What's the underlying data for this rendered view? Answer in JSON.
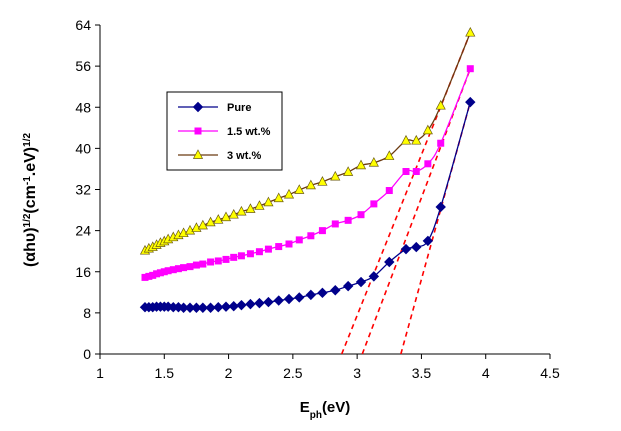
{
  "chart_data": {
    "type": "scatter",
    "title": "",
    "xlabel_main": "E",
    "xlabel_sub": "ph",
    "xlabel_unit": "(eV)",
    "ylabel": {
      "p1": "(αhυ)",
      "sup1": "1/2",
      "p2": "(cm",
      "sup2": "-1",
      "p3": ".eV)",
      "sup3": "1/2"
    },
    "xlim": [
      1,
      4.5
    ],
    "ylim": [
      0,
      64
    ],
    "xticks": [
      "1",
      "1.5",
      "2",
      "2.5",
      "3",
      "3.5",
      "4",
      "4.5"
    ],
    "yticks": [
      "0",
      "8",
      "16",
      "24",
      "32",
      "40",
      "48",
      "56",
      "64"
    ],
    "grid": false,
    "legend_position": "upper-left",
    "series": [
      {
        "name": "Pure",
        "color": "#00008b",
        "marker": "diamond",
        "x": [
          1.35,
          1.38,
          1.41,
          1.44,
          1.47,
          1.5,
          1.53,
          1.57,
          1.61,
          1.65,
          1.7,
          1.75,
          1.8,
          1.86,
          1.92,
          1.98,
          2.04,
          2.1,
          2.17,
          2.24,
          2.31,
          2.39,
          2.47,
          2.55,
          2.64,
          2.73,
          2.83,
          2.93,
          3.03,
          3.13,
          3.25,
          3.38,
          3.46,
          3.55,
          3.65,
          3.88
        ],
        "y": [
          9.1,
          9.1,
          9.1,
          9.2,
          9.2,
          9.2,
          9.2,
          9.1,
          9.1,
          9.0,
          9.0,
          9.0,
          9.0,
          9.0,
          9.1,
          9.2,
          9.3,
          9.5,
          9.7,
          9.9,
          10.1,
          10.4,
          10.7,
          11.0,
          11.5,
          11.9,
          12.4,
          13.2,
          14.0,
          15.1,
          17.9,
          20.4,
          20.8,
          22.0,
          28.6,
          49.0
        ]
      },
      {
        "name": "1.5 wt.%",
        "color": "#ff00ff",
        "marker": "square",
        "x": [
          1.35,
          1.38,
          1.41,
          1.44,
          1.47,
          1.5,
          1.53,
          1.57,
          1.61,
          1.65,
          1.7,
          1.75,
          1.8,
          1.86,
          1.92,
          1.98,
          2.04,
          2.1,
          2.17,
          2.24,
          2.31,
          2.39,
          2.47,
          2.55,
          2.64,
          2.73,
          2.83,
          2.93,
          3.03,
          3.13,
          3.25,
          3.38,
          3.46,
          3.55,
          3.65,
          3.88
        ],
        "y": [
          14.9,
          15.1,
          15.3,
          15.6,
          15.8,
          16.0,
          16.2,
          16.4,
          16.6,
          16.8,
          17.0,
          17.3,
          17.5,
          17.9,
          18.1,
          18.4,
          18.8,
          19.1,
          19.5,
          19.9,
          20.4,
          20.9,
          21.4,
          22.2,
          23.0,
          24.0,
          25.3,
          26.0,
          27.1,
          29.2,
          31.8,
          35.5,
          35.5,
          37.0,
          41.0,
          55.5
        ]
      },
      {
        "name": "3 wt.%",
        "color": "#ffff00",
        "marker": "triangle",
        "x": [
          1.35,
          1.38,
          1.41,
          1.44,
          1.47,
          1.5,
          1.53,
          1.57,
          1.61,
          1.65,
          1.7,
          1.75,
          1.8,
          1.86,
          1.92,
          1.98,
          2.04,
          2.1,
          2.17,
          2.24,
          2.31,
          2.39,
          2.47,
          2.55,
          2.64,
          2.73,
          2.83,
          2.93,
          3.03,
          3.13,
          3.25,
          3.38,
          3.46,
          3.55,
          3.65,
          3.88
        ],
        "y": [
          20.1,
          20.5,
          20.8,
          21.2,
          21.6,
          21.9,
          22.3,
          22.7,
          23.1,
          23.5,
          24.0,
          24.5,
          25.0,
          25.6,
          26.1,
          26.6,
          27.1,
          27.7,
          28.2,
          28.8,
          29.5,
          30.3,
          31.0,
          31.9,
          32.8,
          33.5,
          34.5,
          35.4,
          36.7,
          37.2,
          38.5,
          41.5,
          41.5,
          43.5,
          48.3,
          62.5
        ]
      }
    ],
    "line_colors": [
      "#00008b",
      "#ff00ff",
      "#6b3a10"
    ],
    "extrapolation_lines": {
      "color": "#ff0000",
      "style": "dashed",
      "lines": [
        {
          "x": [
            2.88,
            3.88
          ],
          "y": [
            0,
            62.5
          ]
        },
        {
          "x": [
            3.04,
            3.88
          ],
          "y": [
            0,
            55.5
          ]
        },
        {
          "x": [
            3.34,
            3.88
          ],
          "y": [
            0,
            49.0
          ]
        }
      ]
    }
  }
}
